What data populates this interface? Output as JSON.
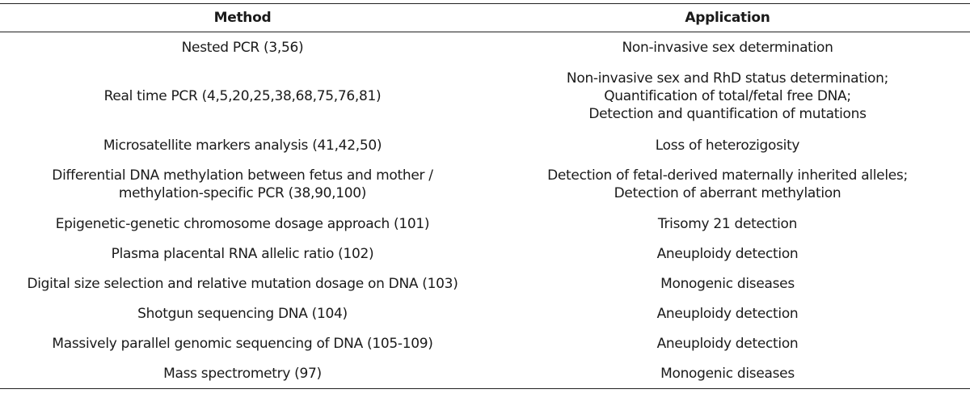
{
  "table": {
    "headers": [
      "Method",
      "Application"
    ],
    "rows": [
      {
        "method": [
          "Nested PCR (3,56)"
        ],
        "application": [
          "Non-invasive sex determination"
        ]
      },
      {
        "method": [
          "Real time PCR (4,5,20,25,38,68,75,76,81)"
        ],
        "application": [
          "Non-invasive sex and RhD status determination;",
          "Quantification of total/fetal free DNA;",
          "Detection and quantification of mutations"
        ]
      },
      {
        "method": [
          "Microsatellite markers analysis (41,42,50)"
        ],
        "application": [
          "Loss of heterozigosity"
        ]
      },
      {
        "method": [
          "Differential DNA methylation between fetus and mother /",
          "methylation-specific PCR (38,90,100)"
        ],
        "application": [
          "Detection of fetal-derived maternally inherited alleles;",
          "Detection of aberrant methylation"
        ]
      },
      {
        "method": [
          "Epigenetic-genetic chromosome dosage approach (101)"
        ],
        "application": [
          "Trisomy 21 detection"
        ]
      },
      {
        "method": [
          "Plasma placental RNA allelic ratio (102)"
        ],
        "application": [
          "Aneuploidy detection"
        ]
      },
      {
        "method": [
          "Digital size selection and relative mutation dosage on DNA (103)"
        ],
        "application": [
          "Monogenic diseases"
        ]
      },
      {
        "method": [
          "Shotgun sequencing DNA (104)"
        ],
        "application": [
          "Aneuploidy detection"
        ]
      },
      {
        "method": [
          "Massively parallel genomic sequencing of DNA (105-109)"
        ],
        "application": [
          "Aneuploidy detection"
        ]
      },
      {
        "method": [
          "Mass spectrometry (97)"
        ],
        "application": [
          "Monogenic diseases"
        ]
      }
    ]
  }
}
